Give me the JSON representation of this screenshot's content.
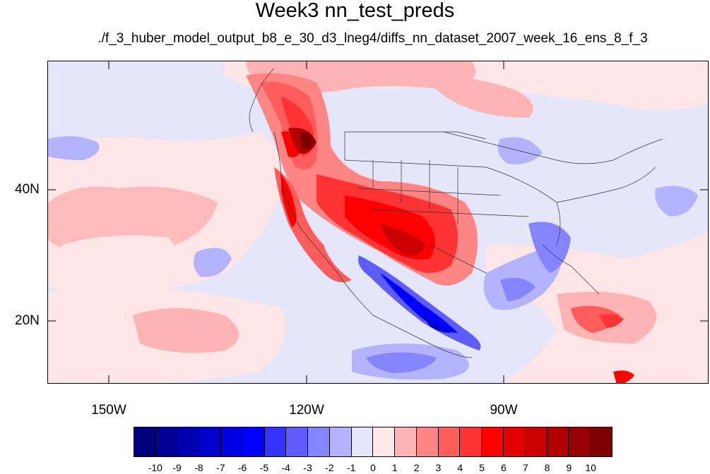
{
  "title": "Week3 nn_test_preds",
  "subtitle": "./f_3_huber_model_output_b8_e_30_d3_lneg4/diffs_nn_dataset_2007_week_16_ens_8_f_3",
  "lat_labels": [
    "40N",
    "20N"
  ],
  "lon_labels": [
    "150W",
    "120W",
    "90W"
  ],
  "colorbar": {
    "labels": [
      "-10",
      "-9",
      "-8",
      "-7",
      "-6",
      "-5",
      "-4",
      "-3",
      "-2",
      "-1",
      "0",
      "1",
      "2",
      "3",
      "4",
      "5",
      "6",
      "7",
      "8",
      "9",
      "10"
    ],
    "colors": [
      "#00007f",
      "#000096",
      "#0000b2",
      "#0000cc",
      "#0000e5",
      "#0000ff",
      "#3333ff",
      "#5c5cff",
      "#8585ff",
      "#b3b3ff",
      "#e6e6fa",
      "#ffe6e6",
      "#ffb3b3",
      "#ff8585",
      "#ff5c5c",
      "#ff3333",
      "#ff0000",
      "#e50000",
      "#cc0000",
      "#b20000",
      "#960000",
      "#7f0000"
    ]
  },
  "map": {
    "background_color": "#e6e6fa",
    "features": [
      {
        "name": "northwest-heat-max",
        "value": 10
      },
      {
        "name": "southwest-warm-anomaly",
        "value": 7
      },
      {
        "name": "mexico-pacific-cold-anomaly",
        "value": -6
      },
      {
        "name": "caribbean-warm-anomaly",
        "value": 6
      }
    ]
  }
}
